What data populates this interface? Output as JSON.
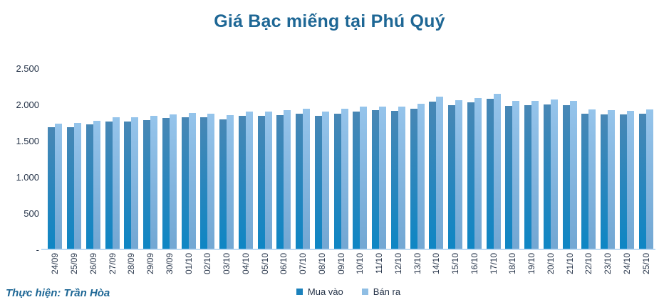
{
  "title": "Giá Bạc miếng tại Phú Quý",
  "footer": {
    "credit": "Thực hiện: Trần Hòa"
  },
  "colors": {
    "title_text": "#1E6795",
    "axis_text": "#263449",
    "axis_line": "#BFDBF2",
    "mua_vao_top": "#4887B5",
    "mua_vao_bottom": "#0E86C4",
    "ban_ra_top": "#95C4EB",
    "ban_ra_bottom": "#72A7D3",
    "legend_mua_vao": "#1B81BC",
    "legend_ban_ra": "#8FBEE4"
  },
  "y_axis": {
    "tick_labels": [
      "2.500",
      "2.000",
      "1.500",
      "1.000",
      "500",
      "-"
    ],
    "tick_values": [
      2500,
      2000,
      1500,
      1000,
      500,
      0
    ]
  },
  "chart_data": {
    "type": "bar",
    "title": "Giá Bạc miếng tại Phú Quý",
    "xlabel": "",
    "ylabel": "",
    "ylim": [
      0,
      2500
    ],
    "grid": false,
    "legend_position": "bottom",
    "categories": [
      "24/09",
      "25/09",
      "26/09",
      "27/09",
      "28/09",
      "29/09",
      "30/09",
      "01/10",
      "02/10",
      "03/10",
      "04/10",
      "05/10",
      "06/10",
      "07/10",
      "08/10",
      "09/10",
      "10/10",
      "11/10",
      "12/10",
      "13/10",
      "14/10",
      "15/10",
      "16/10",
      "17/10",
      "18/10",
      "19/10",
      "20/10",
      "21/10",
      "22/10",
      "23/10",
      "24/10",
      "25/10"
    ],
    "series": [
      {
        "name": "Mua vào",
        "values": [
          1685,
          1690,
          1730,
          1772,
          1772,
          1788,
          1814,
          1831,
          1824,
          1798,
          1847,
          1847,
          1860,
          1873,
          1850,
          1879,
          1912,
          1925,
          1919,
          1951,
          2049,
          2000,
          2033,
          2087,
          1987,
          1997,
          2010,
          1997,
          1876,
          1870,
          1863,
          1873
        ]
      },
      {
        "name": "Bán ra",
        "values": [
          1738,
          1745,
          1780,
          1828,
          1828,
          1846,
          1870,
          1888,
          1880,
          1858,
          1906,
          1903,
          1931,
          1945,
          1912,
          1945,
          1977,
          1977,
          1975,
          2017,
          2110,
          2070,
          2096,
          2156,
          2056,
          2056,
          2075,
          2056,
          1941,
          1929,
          1922,
          1936
        ]
      }
    ]
  }
}
